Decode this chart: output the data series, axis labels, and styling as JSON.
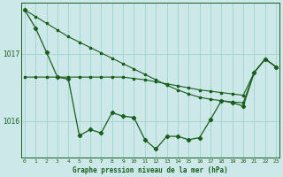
{
  "bg_color": "#cce8e8",
  "line_color": "#1a5c1a",
  "grid_color": "#99cccc",
  "xlabel": "Graphe pression niveau de la mer (hPa)",
  "ylim": [
    1015.45,
    1017.75
  ],
  "yticks": [
    1016,
    1017
  ],
  "xlim": [
    -0.3,
    23.3
  ],
  "xticks": [
    0,
    1,
    2,
    3,
    4,
    5,
    6,
    7,
    8,
    9,
    10,
    11,
    12,
    13,
    14,
    15,
    16,
    17,
    18,
    19,
    20,
    21,
    22,
    23
  ],
  "line1": [
    1017.65,
    1017.38,
    1017.02,
    1016.65,
    1016.62,
    1015.78,
    1015.87,
    1015.82,
    1016.12,
    1016.07,
    1016.05,
    1015.72,
    1015.58,
    1015.77,
    1015.77,
    1015.72,
    1015.75,
    1016.02,
    1016.3,
    1016.27,
    1016.22,
    1016.72,
    1016.92,
    1016.8
  ],
  "line2": [
    1017.65,
    1017.55,
    1017.45,
    1017.35,
    1017.25,
    1017.17,
    1017.09,
    1017.01,
    1016.93,
    1016.85,
    1016.77,
    1016.69,
    1016.61,
    1016.53,
    1016.46,
    1016.4,
    1016.35,
    1016.32,
    1016.3,
    1016.28,
    1016.27,
    1016.72,
    1016.92,
    1016.8
  ],
  "line3": [
    1016.65,
    1016.65,
    1016.65,
    1016.65,
    1016.65,
    1016.65,
    1016.65,
    1016.65,
    1016.65,
    1016.65,
    1016.63,
    1016.61,
    1016.58,
    1016.55,
    1016.52,
    1016.49,
    1016.46,
    1016.44,
    1016.42,
    1016.4,
    1016.38,
    1016.72,
    1016.92,
    1016.8
  ]
}
